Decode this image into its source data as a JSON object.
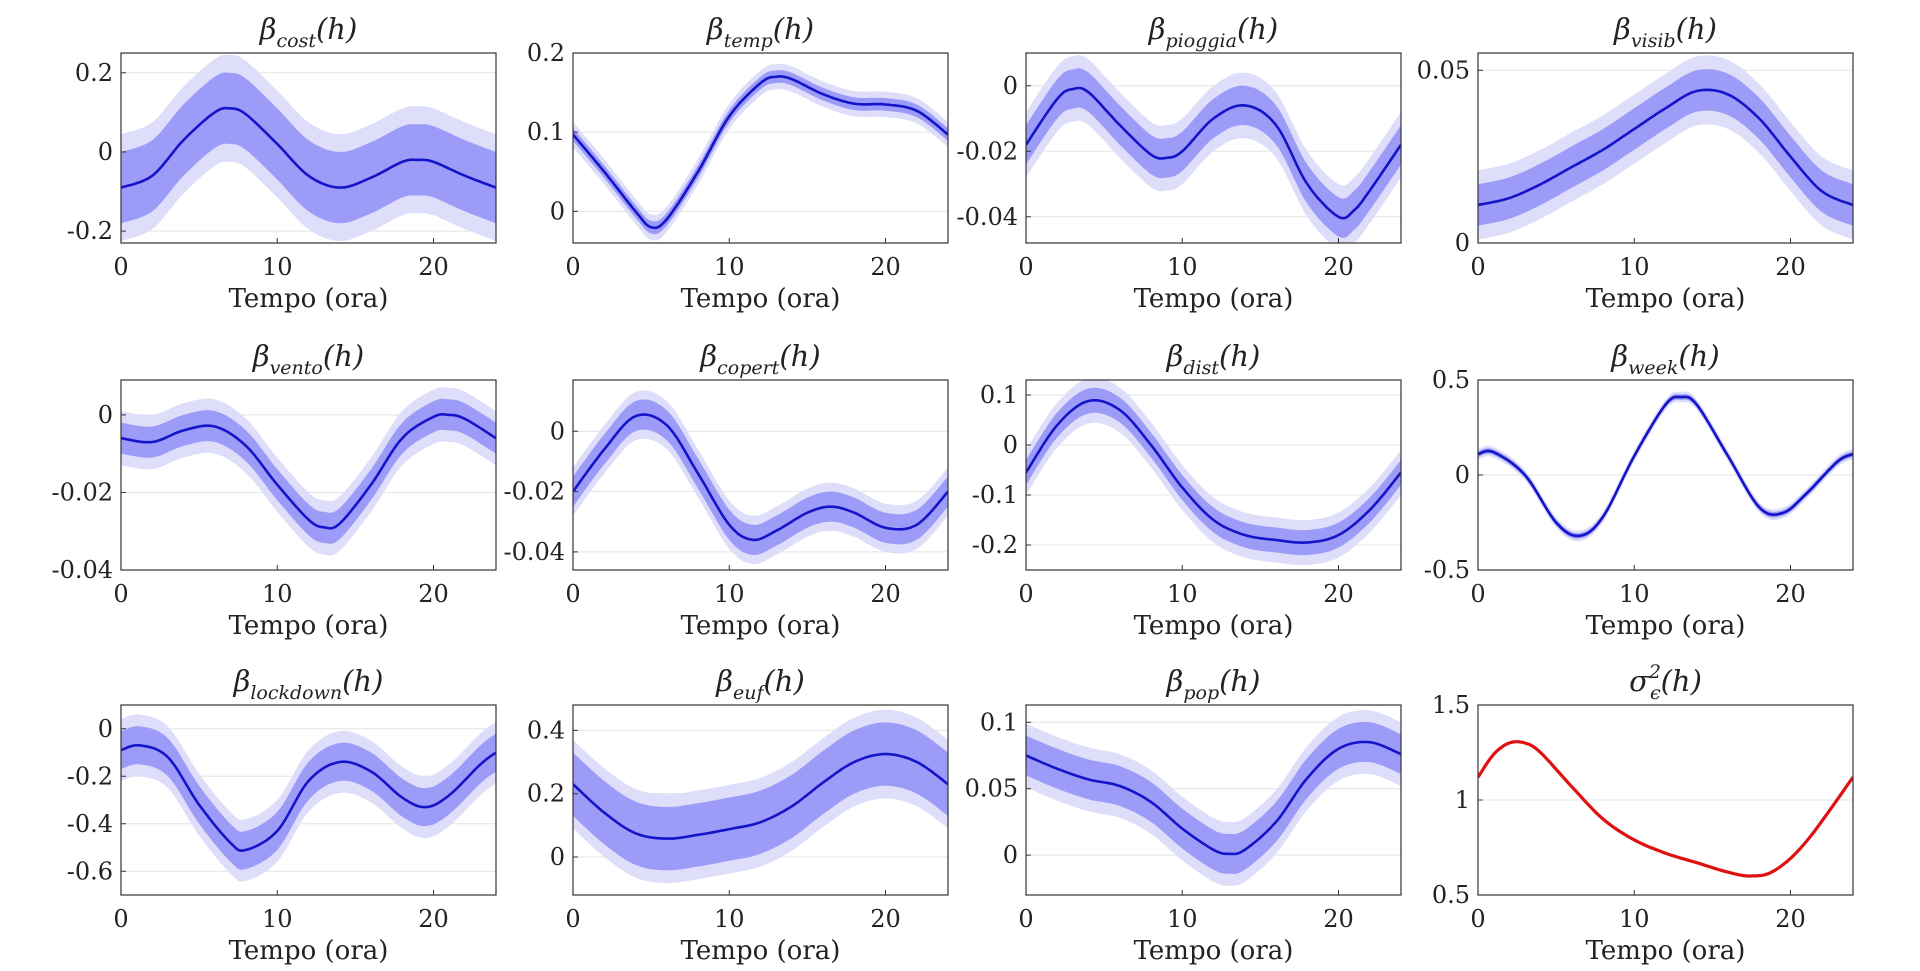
{
  "figure": {
    "band_outer_color": "#dedefa",
    "band_inner_color": "#9c9cf8",
    "line_color": "#1414c8",
    "sigma_color": "#e01010",
    "grid": true
  },
  "chart_data": [
    {
      "type": "line",
      "title_symbol": "β",
      "title_sub": "cost",
      "title_sup": "",
      "title_arg": "(h)",
      "xlabel": "Tempo (ora)",
      "xlim": [
        0,
        24
      ],
      "ylim": [
        -0.23,
        0.25
      ],
      "xticks": [
        0,
        10,
        20
      ],
      "yticks": [
        -0.2,
        0,
        0.2
      ],
      "yticklabels": [
        "-0.2",
        "0",
        "0.2"
      ],
      "x": [
        0,
        2,
        4,
        6,
        7,
        8,
        10,
        12,
        14,
        16,
        18,
        19,
        20,
        22,
        24
      ],
      "y": [
        -0.09,
        -0.06,
        0.03,
        0.1,
        0.11,
        0.095,
        0.02,
        -0.06,
        -0.09,
        -0.065,
        -0.025,
        -0.02,
        -0.025,
        -0.06,
        -0.09
      ],
      "band_inner": 0.09,
      "band_outer": 0.135
    },
    {
      "type": "line",
      "title_symbol": "β",
      "title_sub": "temp",
      "title_sup": "",
      "title_arg": "(h)",
      "xlabel": "Tempo (ora)",
      "xlim": [
        0,
        24
      ],
      "ylim": [
        -0.04,
        0.2
      ],
      "xticks": [
        0,
        10,
        20
      ],
      "yticks": [
        0,
        0.1,
        0.2
      ],
      "yticklabels": [
        "0",
        "0.1",
        "0.2"
      ],
      "x": [
        0,
        2,
        4,
        5,
        6,
        8,
        10,
        12,
        13,
        14,
        16,
        18,
        20,
        22,
        24
      ],
      "y": [
        0.097,
        0.05,
        0.0,
        -0.02,
        -0.01,
        0.05,
        0.12,
        0.162,
        0.17,
        0.167,
        0.148,
        0.136,
        0.135,
        0.127,
        0.097
      ],
      "band_inner": 0.008,
      "band_outer": 0.016
    },
    {
      "type": "line",
      "title_symbol": "β",
      "title_sub": "pioggia",
      "title_sup": "",
      "title_arg": "(h)",
      "xlabel": "Tempo (ora)",
      "xlim": [
        0,
        24
      ],
      "ylim": [
        -0.048,
        0.01
      ],
      "xticks": [
        0,
        10,
        20
      ],
      "yticks": [
        -0.04,
        -0.02,
        0
      ],
      "yticklabels": [
        "-0.04",
        "-0.02",
        "0"
      ],
      "x": [
        0,
        2,
        3,
        4,
        6,
        8,
        9,
        10,
        12,
        14,
        16,
        18,
        20,
        21,
        22,
        24
      ],
      "y": [
        -0.018,
        -0.004,
        -0.001,
        -0.002,
        -0.012,
        -0.021,
        -0.022,
        -0.02,
        -0.01,
        -0.006,
        -0.012,
        -0.03,
        -0.04,
        -0.038,
        -0.032,
        -0.018
      ],
      "band_inner": 0.006,
      "band_outer": 0.01
    },
    {
      "type": "line",
      "title_symbol": "β",
      "title_sub": "visib",
      "title_sup": "",
      "title_arg": "(h)",
      "xlabel": "Tempo (ora)",
      "xlim": [
        0,
        24
      ],
      "ylim": [
        0,
        0.055
      ],
      "xticks": [
        0,
        10,
        20
      ],
      "yticks": [
        0,
        0.05
      ],
      "yticklabels": [
        "0",
        "0.05"
      ],
      "x": [
        0,
        2,
        4,
        6,
        8,
        10,
        12,
        14,
        16,
        18,
        20,
        22,
        24
      ],
      "y": [
        0.011,
        0.013,
        0.017,
        0.022,
        0.027,
        0.033,
        0.039,
        0.044,
        0.043,
        0.036,
        0.025,
        0.015,
        0.011
      ],
      "band_inner": 0.006,
      "band_outer": 0.01
    },
    {
      "type": "line",
      "title_symbol": "β",
      "title_sub": "vento",
      "title_sup": "",
      "title_arg": "(h)",
      "xlabel": "Tempo (ora)",
      "xlim": [
        0,
        24
      ],
      "ylim": [
        -0.04,
        0.009
      ],
      "xticks": [
        0,
        10,
        20
      ],
      "yticks": [
        -0.04,
        -0.02,
        0
      ],
      "yticklabels": [
        "-0.04",
        "-0.02",
        "0"
      ],
      "x": [
        0,
        2,
        4,
        6,
        8,
        10,
        12,
        13,
        14,
        16,
        18,
        20,
        21,
        22,
        24
      ],
      "y": [
        -0.006,
        -0.007,
        -0.004,
        -0.003,
        -0.008,
        -0.018,
        -0.027,
        -0.029,
        -0.028,
        -0.018,
        -0.006,
        -0.0005,
        0.0,
        -0.001,
        -0.006
      ],
      "band_inner": 0.004,
      "band_outer": 0.007
    },
    {
      "type": "line",
      "title_symbol": "β",
      "title_sub": "copert",
      "title_sup": "",
      "title_arg": "(h)",
      "xlabel": "Tempo (ora)",
      "xlim": [
        0,
        24
      ],
      "ylim": [
        -0.046,
        0.017
      ],
      "xticks": [
        0,
        10,
        20
      ],
      "yticks": [
        -0.04,
        -0.02,
        0
      ],
      "yticklabels": [
        "-0.04",
        "-0.02",
        "0"
      ],
      "x": [
        0,
        2,
        4,
        6,
        8,
        10,
        11.5,
        13,
        15,
        16.5,
        18,
        20,
        22,
        24
      ],
      "y": [
        -0.02,
        -0.006,
        0.005,
        0.002,
        -0.014,
        -0.031,
        -0.036,
        -0.033,
        -0.027,
        -0.025,
        -0.027,
        -0.032,
        -0.031,
        -0.02
      ],
      "band_inner": 0.005,
      "band_outer": 0.008
    },
    {
      "type": "line",
      "title_symbol": "β",
      "title_sub": "dist",
      "title_sup": "",
      "title_arg": "(h)",
      "xlabel": "Tempo (ora)",
      "xlim": [
        0,
        24
      ],
      "ylim": [
        -0.25,
        0.13
      ],
      "xticks": [
        0,
        10,
        20
      ],
      "yticks": [
        -0.2,
        -0.1,
        0,
        0.1
      ],
      "yticklabels": [
        "-0.2",
        "-0.1",
        "0",
        "0.1"
      ],
      "x": [
        0,
        2,
        4,
        6,
        8,
        10,
        12,
        14,
        16,
        18,
        20,
        22,
        24
      ],
      "y": [
        -0.055,
        0.04,
        0.088,
        0.07,
        0.0,
        -0.085,
        -0.15,
        -0.18,
        -0.19,
        -0.195,
        -0.18,
        -0.13,
        -0.055
      ],
      "band_inner": 0.025,
      "band_outer": 0.045
    },
    {
      "type": "line",
      "title_symbol": "β",
      "title_sub": "week",
      "title_sup": "",
      "title_arg": "(h)",
      "xlabel": "Tempo (ora)",
      "xlim": [
        0,
        24
      ],
      "ylim": [
        -0.5,
        0.5
      ],
      "xticks": [
        0,
        10,
        20
      ],
      "yticks": [
        -0.5,
        0,
        0.5
      ],
      "yticklabels": [
        "-0.5",
        "0",
        "0.5"
      ],
      "x": [
        0,
        1,
        3,
        5,
        6.5,
        8,
        10,
        12,
        13,
        14,
        16,
        18,
        19.5,
        21,
        23,
        24
      ],
      "y": [
        0.11,
        0.12,
        0.0,
        -0.25,
        -0.32,
        -0.22,
        0.1,
        0.37,
        0.41,
        0.37,
        0.1,
        -0.17,
        -0.2,
        -0.1,
        0.07,
        0.11
      ],
      "band_inner": 0.015,
      "band_outer": 0.028
    },
    {
      "type": "line",
      "title_symbol": "β",
      "title_sub": "lockdown",
      "title_sup": "",
      "title_arg": "(h)",
      "xlabel": "Tempo (ora)",
      "xlim": [
        0,
        24
      ],
      "ylim": [
        -0.7,
        0.1
      ],
      "xticks": [
        0,
        10,
        20
      ],
      "yticks": [
        -0.6,
        -0.4,
        -0.2,
        0
      ],
      "yticklabels": [
        "-0.6",
        "-0.4",
        "-0.2",
        "0"
      ],
      "x": [
        0,
        1.2,
        3,
        5,
        7,
        8,
        10,
        12,
        14,
        16,
        18,
        19.5,
        21,
        23,
        24
      ],
      "y": [
        -0.09,
        -0.07,
        -0.12,
        -0.32,
        -0.48,
        -0.51,
        -0.43,
        -0.22,
        -0.14,
        -0.18,
        -0.29,
        -0.33,
        -0.28,
        -0.15,
        -0.1
      ],
      "band_inner": 0.08,
      "band_outer": 0.13
    },
    {
      "type": "line",
      "title_symbol": "β",
      "title_sub": "euf",
      "title_sup": "",
      "title_arg": "(h)",
      "xlabel": "Tempo (ora)",
      "xlim": [
        0,
        24
      ],
      "ylim": [
        -0.12,
        0.48
      ],
      "xticks": [
        0,
        10,
        20
      ],
      "yticks": [
        0,
        0.2,
        0.4
      ],
      "yticklabels": [
        "0",
        "0.2",
        "0.4"
      ],
      "x": [
        0,
        2,
        4,
        6,
        8,
        10,
        12,
        14,
        16,
        18,
        20,
        22,
        24
      ],
      "y": [
        0.23,
        0.14,
        0.075,
        0.058,
        0.07,
        0.088,
        0.11,
        0.16,
        0.235,
        0.3,
        0.325,
        0.3,
        0.23
      ],
      "band_inner": 0.1,
      "band_outer": 0.14
    },
    {
      "type": "line",
      "title_symbol": "β",
      "title_sub": "pop",
      "title_sup": "",
      "title_arg": "(h)",
      "xlabel": "Tempo (ora)",
      "xlim": [
        0,
        24
      ],
      "ylim": [
        -0.03,
        0.113
      ],
      "xticks": [
        0,
        10,
        20
      ],
      "yticks": [
        0,
        0.05,
        0.1
      ],
      "yticklabels": [
        "0",
        "0.05",
        "0.1"
      ],
      "x": [
        0,
        2,
        4,
        6,
        8,
        10,
        12,
        13,
        14,
        16,
        18,
        20,
        22,
        24
      ],
      "y": [
        0.075,
        0.065,
        0.057,
        0.052,
        0.04,
        0.02,
        0.004,
        0.001,
        0.004,
        0.025,
        0.058,
        0.08,
        0.085,
        0.076
      ],
      "band_inner": 0.015,
      "band_outer": 0.024
    },
    {
      "type": "line",
      "title_symbol": "σ",
      "title_sub": "ϵ",
      "title_sup": "2",
      "title_arg": "(h)",
      "xlabel": "Tempo (ora)",
      "xlim": [
        0,
        24
      ],
      "ylim": [
        0.5,
        1.5
      ],
      "xticks": [
        0,
        10,
        20
      ],
      "yticks": [
        0.5,
        1,
        1.5
      ],
      "yticklabels": [
        "0.5",
        "1",
        "1.5"
      ],
      "x": [
        0,
        1,
        2,
        3,
        4,
        6,
        8,
        10,
        12,
        14,
        16,
        17.5,
        19,
        21,
        24
      ],
      "y": [
        1.12,
        1.24,
        1.3,
        1.3,
        1.25,
        1.07,
        0.9,
        0.79,
        0.72,
        0.67,
        0.62,
        0.6,
        0.63,
        0.78,
        1.12
      ],
      "band_inner": 0,
      "band_outer": 0,
      "line_style": "sigma"
    }
  ]
}
